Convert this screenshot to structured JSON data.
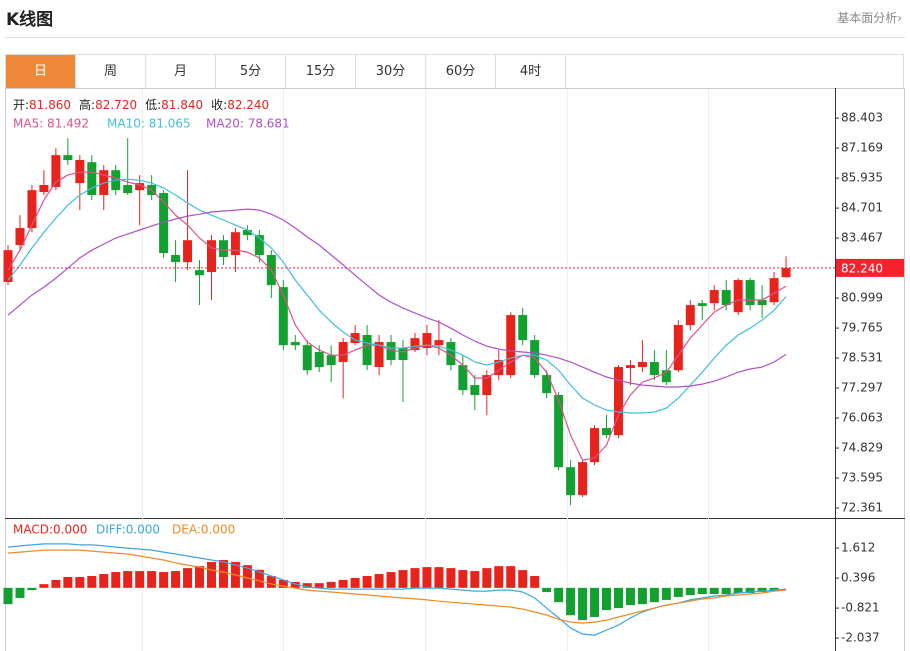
{
  "header": {
    "title": "K线图",
    "link": "基本面分析›"
  },
  "tabs": [
    "日",
    "周",
    "月",
    "5分",
    "15分",
    "30分",
    "60分",
    "4时"
  ],
  "selected_tab": 0,
  "chart_data": [
    {
      "type": "candlestick",
      "info": [
        {
          "label": "开:",
          "value": "81.860"
        },
        {
          "label": "高:",
          "value": "82.720"
        },
        {
          "label": "低:",
          "value": "81.840"
        },
        {
          "label": "收:",
          "value": "82.240"
        }
      ],
      "up_color": "#e8231c",
      "down_color": "#12a030",
      "open": [
        81.66,
        83.18,
        83.88,
        85.36,
        85.57,
        86.88,
        85.73,
        86.59,
        85.24,
        86.26,
        85.65,
        85.44,
        85.65,
        85.32,
        82.77,
        82.48,
        82.15,
        82.07,
        83.38,
        82.77,
        83.8,
        83.59,
        82.77,
        81.45,
        79.19,
        79.06,
        78.78,
        78.65,
        78.37,
        79.15,
        79.48,
        78.16,
        79.19,
        78.94,
        78.86,
        78.94,
        79.06,
        79.19,
        78.24,
        77.42,
        77.01,
        77.83,
        77.83,
        80.3,
        79.27,
        77.83,
        77.01,
        74.04,
        72.89,
        74.25,
        75.65,
        75.36,
        78.12,
        78.16,
        78.37,
        78.03,
        78.03,
        79.89,
        80.79,
        80.79,
        81.33,
        80.42,
        81.74,
        80.92,
        80.83,
        81.86
      ],
      "high": [
        83.18,
        84.41,
        85.65,
        86.26,
        87.17,
        87.58,
        86.88,
        86.88,
        86.47,
        86.47,
        87.58,
        86.06,
        86.06,
        85.44,
        83.38,
        86.26,
        82.56,
        83.59,
        83.59,
        83.88,
        84.0,
        83.8,
        82.97,
        81.74,
        79.48,
        79.27,
        79.06,
        79.06,
        79.35,
        79.89,
        79.89,
        79.48,
        79.48,
        79.27,
        79.56,
        79.89,
        80.09,
        79.35,
        78.65,
        77.83,
        78.03,
        78.86,
        80.42,
        80.59,
        79.48,
        78.03,
        77.13,
        74.33,
        74.33,
        75.77,
        76.19,
        78.24,
        78.45,
        79.27,
        78.86,
        78.86,
        80.09,
        80.92,
        80.92,
        81.53,
        81.74,
        81.82,
        81.82,
        81.53,
        82.07,
        82.72
      ],
      "low": [
        81.53,
        82.97,
        83.71,
        85.24,
        85.44,
        86.47,
        84.62,
        85.03,
        84.62,
        85.24,
        85.24,
        84.0,
        85.03,
        82.65,
        81.66,
        82.15,
        80.71,
        80.92,
        82.36,
        82.07,
        83.38,
        82.48,
        81.0,
        78.86,
        78.86,
        77.83,
        77.95,
        77.54,
        76.88,
        79.06,
        78.03,
        77.83,
        78.24,
        76.72,
        78.78,
        78.65,
        78.65,
        78.03,
        77.01,
        76.39,
        76.19,
        77.62,
        77.71,
        79.06,
        77.71,
        76.88,
        73.92,
        72.48,
        72.81,
        74.13,
        75.24,
        75.24,
        77.42,
        77.95,
        77.62,
        77.42,
        77.95,
        79.68,
        80.09,
        80.5,
        80.5,
        80.3,
        80.5,
        80.18,
        80.71,
        81.84
      ],
      "close": [
        82.97,
        83.88,
        85.44,
        85.65,
        86.88,
        86.68,
        86.68,
        85.24,
        86.26,
        85.44,
        85.32,
        85.73,
        85.24,
        82.85,
        82.48,
        83.38,
        81.94,
        83.38,
        82.69,
        83.71,
        83.59,
        82.77,
        81.53,
        79.06,
        79.06,
        78.03,
        78.16,
        78.24,
        79.19,
        79.56,
        78.24,
        79.19,
        78.45,
        78.45,
        79.35,
        79.56,
        79.27,
        78.24,
        77.21,
        77.01,
        77.83,
        78.45,
        80.3,
        79.27,
        77.83,
        77.09,
        74.04,
        72.89,
        74.25,
        75.65,
        75.36,
        78.16,
        78.24,
        78.37,
        77.83,
        77.54,
        79.89,
        80.71,
        80.67,
        81.33,
        80.71,
        81.74,
        80.71,
        80.71,
        81.82,
        82.24
      ],
      "series": [
        {
          "name": "MA5: 81.492",
          "color": "#e0508a",
          "values": [
            82.15,
            82.97,
            84.0,
            85.03,
            85.77,
            86.06,
            86.18,
            86.18,
            86.06,
            85.94,
            85.77,
            85.65,
            85.44,
            84.95,
            84.41,
            84.0,
            83.47,
            83.06,
            82.97,
            82.97,
            82.89,
            82.65,
            82.15,
            81.12,
            79.89,
            79.19,
            78.86,
            78.65,
            78.65,
            78.86,
            79.06,
            79.06,
            78.86,
            78.78,
            78.94,
            79.06,
            78.94,
            78.65,
            78.24,
            77.71,
            77.71,
            78.03,
            78.37,
            78.65,
            78.53,
            77.95,
            76.8,
            75.36,
            74.33,
            74.42,
            74.95,
            76.19,
            77.01,
            77.54,
            77.71,
            77.95,
            78.65,
            79.35,
            79.89,
            80.42,
            80.71,
            80.92,
            80.92,
            80.92,
            81.2,
            81.492
          ]
        },
        {
          "name": "MA10: 81.065",
          "color": "#3fbfd8",
          "values": [
            81.74,
            82.36,
            83.06,
            83.71,
            84.29,
            84.82,
            85.24,
            85.52,
            85.73,
            85.85,
            85.89,
            85.85,
            85.73,
            85.53,
            85.24,
            84.91,
            84.62,
            84.41,
            84.21,
            84.0,
            83.8,
            83.47,
            83.06,
            82.48,
            81.74,
            81.12,
            80.5,
            80.01,
            79.6,
            79.27,
            79.15,
            79.06,
            78.94,
            78.94,
            79.02,
            79.06,
            79.02,
            78.86,
            78.65,
            78.37,
            78.24,
            78.37,
            78.53,
            78.65,
            78.65,
            78.45,
            78.03,
            77.42,
            76.88,
            76.6,
            76.39,
            76.31,
            76.27,
            76.27,
            76.31,
            76.47,
            76.88,
            77.42,
            77.95,
            78.53,
            79.06,
            79.48,
            79.76,
            80.09,
            80.5,
            81.065
          ]
        },
        {
          "name": "MA20: 78.681",
          "color": "#b050c8",
          "values": [
            80.3,
            80.71,
            81.12,
            81.45,
            81.82,
            82.23,
            82.65,
            82.97,
            83.22,
            83.47,
            83.63,
            83.8,
            83.96,
            84.12,
            84.25,
            84.37,
            84.45,
            84.54,
            84.58,
            84.62,
            84.66,
            84.62,
            84.45,
            84.21,
            83.88,
            83.51,
            83.18,
            82.77,
            82.36,
            81.94,
            81.53,
            81.12,
            80.83,
            80.59,
            80.38,
            80.18,
            80.01,
            79.76,
            79.48,
            79.23,
            79.02,
            78.9,
            78.82,
            78.78,
            78.74,
            78.65,
            78.53,
            78.37,
            78.16,
            77.95,
            77.75,
            77.62,
            77.5,
            77.42,
            77.38,
            77.34,
            77.34,
            77.38,
            77.46,
            77.58,
            77.75,
            77.95,
            78.08,
            78.16,
            78.37,
            78.681
          ]
        }
      ],
      "last_price": {
        "value": 82.24,
        "label": "82.240"
      },
      "last_price_color": "#f5222d",
      "ylim": [
        71.95,
        89.56
      ],
      "yticks": [
        88.403,
        87.169,
        85.935,
        84.701,
        83.467,
        80.999,
        79.765,
        78.531,
        77.297,
        76.063,
        74.829,
        73.595,
        72.361
      ]
    },
    {
      "type": "macd",
      "down_color": "#12a030",
      "series": [
        {
          "name": "MACD:0.000",
          "type": "bar",
          "color": "#e8231c",
          "values": [
            -0.66,
            -0.41,
            -0.09,
            0.15,
            0.32,
            0.44,
            0.44,
            0.48,
            0.56,
            0.64,
            0.68,
            0.68,
            0.68,
            0.64,
            0.68,
            0.8,
            0.88,
            1.05,
            1.13,
            1.05,
            0.92,
            0.73,
            0.48,
            0.32,
            0.24,
            0.19,
            0.19,
            0.24,
            0.32,
            0.4,
            0.48,
            0.56,
            0.64,
            0.72,
            0.8,
            0.84,
            0.84,
            0.8,
            0.72,
            0.68,
            0.8,
            0.88,
            0.88,
            0.72,
            0.48,
            -0.17,
            -0.58,
            -1.11,
            -1.31,
            -1.18,
            -0.9,
            -0.82,
            -0.7,
            -0.66,
            -0.58,
            -0.49,
            -0.37,
            -0.29,
            -0.25,
            -0.25,
            -0.25,
            -0.21,
            -0.21,
            -0.17,
            -0.13,
            0
          ]
        },
        {
          "name": "DIFF:0.000",
          "type": "line",
          "color": "#3ea6e0",
          "values": [
            1.65,
            1.7,
            1.74,
            1.78,
            1.78,
            1.78,
            1.74,
            1.74,
            1.7,
            1.65,
            1.61,
            1.57,
            1.53,
            1.45,
            1.37,
            1.29,
            1.21,
            1.13,
            1.05,
            0.92,
            0.8,
            0.64,
            0.48,
            0.32,
            0.15,
            0.03,
            -0.01,
            -0.05,
            -0.05,
            -0.05,
            -0.05,
            -0.05,
            -0.05,
            -0.05,
            -0.01,
            -0.01,
            -0.01,
            -0.05,
            -0.09,
            -0.13,
            -0.13,
            -0.09,
            -0.09,
            -0.17,
            -0.41,
            -0.82,
            -1.22,
            -1.63,
            -1.87,
            -1.92,
            -1.71,
            -1.51,
            -1.22,
            -0.98,
            -0.82,
            -0.7,
            -0.62,
            -0.49,
            -0.41,
            -0.33,
            -0.29,
            -0.21,
            -0.17,
            -0.13,
            -0.09,
            -0.05
          ]
        },
        {
          "name": "DEA:0.000",
          "type": "line",
          "color": "#f08a24",
          "values": [
            1.41,
            1.45,
            1.49,
            1.53,
            1.53,
            1.53,
            1.53,
            1.49,
            1.45,
            1.41,
            1.37,
            1.29,
            1.21,
            1.13,
            1.01,
            0.92,
            0.84,
            0.72,
            0.64,
            0.52,
            0.4,
            0.28,
            0.15,
            0.07,
            -0.01,
            -0.09,
            -0.13,
            -0.17,
            -0.21,
            -0.25,
            -0.29,
            -0.33,
            -0.37,
            -0.41,
            -0.45,
            -0.49,
            -0.54,
            -0.58,
            -0.62,
            -0.66,
            -0.7,
            -0.74,
            -0.78,
            -0.86,
            -0.98,
            -1.1,
            -1.27,
            -1.39,
            -1.43,
            -1.39,
            -1.31,
            -1.18,
            -1.06,
            -0.94,
            -0.82,
            -0.7,
            -0.62,
            -0.54,
            -0.45,
            -0.41,
            -0.33,
            -0.29,
            -0.25,
            -0.21,
            -0.13,
            -0.09
          ]
        }
      ],
      "ylim": [
        -2.56,
        2.75
      ],
      "yticks": [
        1.612,
        0.396,
        -0.821,
        -2.037
      ]
    }
  ]
}
